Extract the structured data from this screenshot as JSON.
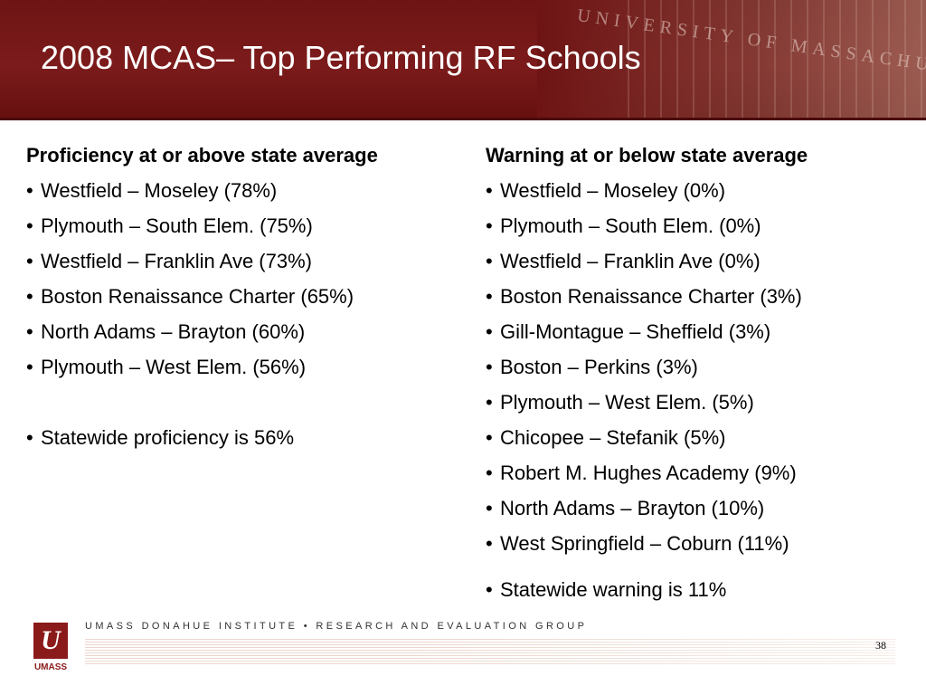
{
  "header": {
    "title": "2008 MCAS– Top Performing RF Schools",
    "carved_text": "UNIVERSITY OF MASSACHUSETTS"
  },
  "left_column": {
    "heading": "Proficiency at or above state average",
    "items": [
      "Westfield – Moseley (78%)",
      "Plymouth – South Elem. (75%)",
      "Westfield – Franklin Ave (73%)",
      "Boston Renaissance Charter (65%)",
      "North Adams – Brayton (60%)",
      "Plymouth – West Elem. (56%)"
    ],
    "summary": "Statewide proficiency is 56%"
  },
  "right_column": {
    "heading": "Warning at or below state average",
    "items": [
      "Westfield – Moseley (0%)",
      "Plymouth – South Elem. (0%)",
      "Westfield – Franklin Ave (0%)",
      "Boston Renaissance Charter (3%)",
      "Gill-Montague – Sheffield (3%)",
      "Boston – Perkins (3%)",
      "Plymouth – West Elem. (5%)",
      "Chicopee – Stefanik (5%)",
      "Robert M. Hughes Academy (9%)",
      "North Adams – Brayton (10%)",
      "West Springfield – Coburn (11%)"
    ],
    "summary": "Statewide warning is 11%"
  },
  "footer": {
    "logo_text": "UMASS",
    "org_text": "UMASS DONAHUE INSTITUTE  •  RESEARCH AND EVALUATION GROUP",
    "page_number": "38"
  },
  "bullet_char": "•",
  "colors": {
    "header_bg": "#7c1b1b",
    "brand": "#8b1a1a"
  }
}
